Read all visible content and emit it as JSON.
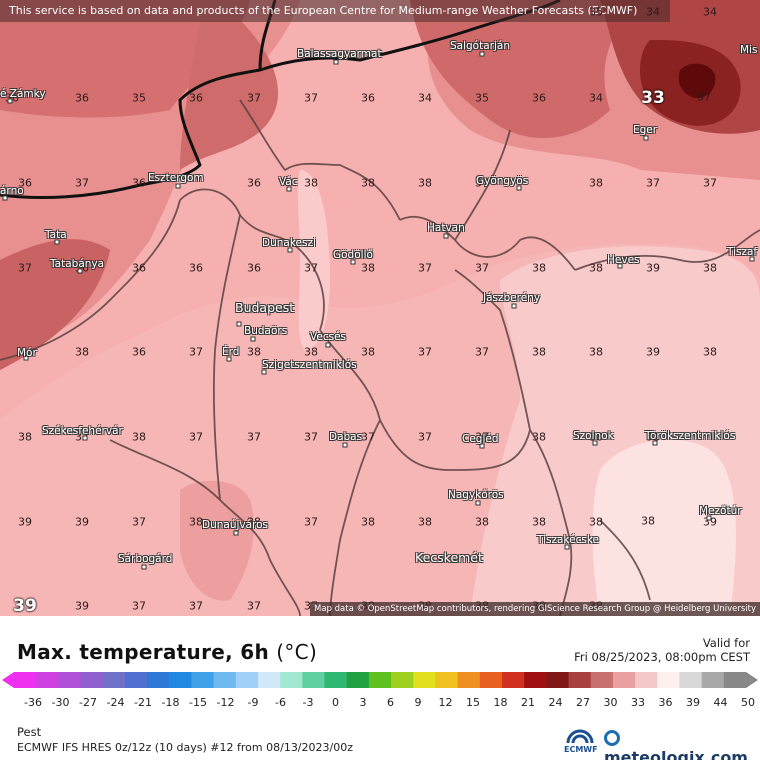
{
  "banner": "This service is based on data and products of the European Centre for Medium-range Weather Forecasts (ECMWF)",
  "attribution": "Map data © OpenStreetMap contributors, rendering GIScience Research Group @ Heidelberg University",
  "title": "Max. temperature, 6h",
  "unit": "(°C)",
  "valid_label": "Valid for",
  "valid_date": "Fri 08/25/2023, 08:00pm CEST",
  "location": "Pest",
  "model_info": "ECMWF IFS HRES 0z/12z (10 days) #12 from  08/13/2023/00z",
  "ecmwf_logo_text": "ECMWF",
  "brand": "meteologix.com",
  "colorbar": {
    "labels": [
      "-36",
      "-30",
      "-27",
      "-24",
      "-21",
      "-18",
      "-15",
      "-12",
      "-9",
      "-6",
      "-3",
      "0",
      "3",
      "6",
      "9",
      "12",
      "15",
      "18",
      "21",
      "24",
      "27",
      "30",
      "33",
      "36",
      "39",
      "44",
      "50"
    ],
    "colors": [
      "#f030f0",
      "#d040e0",
      "#b050d8",
      "#9060d0",
      "#7070c8",
      "#5070d0",
      "#3078d8",
      "#2088e0",
      "#40a0e8",
      "#70b8f0",
      "#a0d0f8",
      "#d0e8f8",
      "#a0e8d0",
      "#60d0a0",
      "#30b870",
      "#20a040",
      "#60c020",
      "#a0d020",
      "#e0e020",
      "#f0c020",
      "#f09020",
      "#e86020",
      "#d03020",
      "#a01010",
      "#801818",
      "#a84040",
      "#c87070",
      "#e8a0a0",
      "#f4c8c8",
      "#fff0f0",
      "#d8d8d8",
      "#a8a8a8",
      "#888888"
    ]
  },
  "grid_values": [
    {
      "v": "35"
    },
    {
      "v": "34"
    },
    {
      "v": "34"
    },
    {
      "v": "36"
    },
    {
      "v": "36"
    },
    {
      "v": "35"
    },
    {
      "v": "36"
    },
    {
      "v": "37"
    },
    {
      "v": "37"
    },
    {
      "v": "36"
    },
    {
      "v": "34"
    },
    {
      "v": "35"
    },
    {
      "v": "36"
    },
    {
      "v": "34"
    },
    {
      "v": "33",
      "big": true
    },
    {
      "v": "37"
    },
    {
      "v": "36"
    },
    {
      "v": "37"
    },
    {
      "v": "36"
    },
    {
      "v": "36"
    },
    {
      "v": "38"
    },
    {
      "v": "38"
    },
    {
      "v": "38"
    },
    {
      "v": "37"
    },
    {
      "v": "38"
    },
    {
      "v": "37"
    },
    {
      "v": "37"
    },
    {
      "v": "37"
    },
    {
      "v": "36"
    },
    {
      "v": "36"
    },
    {
      "v": "36"
    },
    {
      "v": "36"
    },
    {
      "v": "37"
    },
    {
      "v": "38"
    },
    {
      "v": "37"
    },
    {
      "v": "37"
    },
    {
      "v": "38"
    },
    {
      "v": "38"
    },
    {
      "v": "39"
    },
    {
      "v": "38"
    },
    {
      "v": "38"
    },
    {
      "v": "36"
    },
    {
      "v": "37"
    },
    {
      "v": "38"
    },
    {
      "v": "38"
    },
    {
      "v": "38"
    },
    {
      "v": "37"
    },
    {
      "v": "37"
    },
    {
      "v": "38"
    },
    {
      "v": "38"
    },
    {
      "v": "39"
    },
    {
      "v": "38"
    },
    {
      "v": "38"
    },
    {
      "v": "37"
    },
    {
      "v": "38"
    },
    {
      "v": "37"
    },
    {
      "v": "37"
    },
    {
      "v": "37"
    },
    {
      "v": "37"
    },
    {
      "v": "37"
    },
    {
      "v": "37"
    },
    {
      "v": "38"
    },
    {
      "v": "38"
    },
    {
      "v": "38"
    },
    {
      "v": "39"
    },
    {
      "v": "39"
    },
    {
      "v": "37"
    },
    {
      "v": "38"
    },
    {
      "v": "38"
    },
    {
      "v": "37"
    },
    {
      "v": "38"
    },
    {
      "v": "38"
    },
    {
      "v": "38"
    },
    {
      "v": "38"
    },
    {
      "v": "38"
    },
    {
      "v": "38"
    },
    {
      "v": "39"
    },
    {
      "v": "39",
      "big": true
    },
    {
      "v": "39"
    },
    {
      "v": "37"
    },
    {
      "v": "37"
    },
    {
      "v": "37"
    },
    {
      "v": "37"
    },
    {
      "v": "38"
    },
    {
      "v": "38"
    },
    {
      "v": "38"
    },
    {
      "v": "38"
    },
    {
      "v": "38"
    },
    {
      "v": "39"
    },
    {
      "v": "39"
    }
  ],
  "cities": [
    {
      "name": "Balassagyarmat"
    },
    {
      "name": "Salgótarján"
    },
    {
      "name": "Mis"
    },
    {
      "name": "é Zámky"
    },
    {
      "name": "Eger"
    },
    {
      "name": "Esztergom"
    },
    {
      "name": "Vác"
    },
    {
      "name": "Gyöngyös"
    },
    {
      "name": "árno"
    },
    {
      "name": "Tata"
    },
    {
      "name": "Dunakeszi"
    },
    {
      "name": "Gödöllő"
    },
    {
      "name": "Hatvan"
    },
    {
      "name": "Tatabánya"
    },
    {
      "name": "Heves"
    },
    {
      "name": "Tiszaf"
    },
    {
      "name": "Jászberény"
    },
    {
      "name": "Budapest",
      "large": true
    },
    {
      "name": "Budaörs"
    },
    {
      "name": "Vecsés"
    },
    {
      "name": "Mór"
    },
    {
      "name": "Érd"
    },
    {
      "name": "Szigetszentmiklós"
    },
    {
      "name": "Székesfehérvár"
    },
    {
      "name": "Dabas"
    },
    {
      "name": "Cegléd"
    },
    {
      "name": "Szolnok"
    },
    {
      "name": "Törökszentmiklós"
    },
    {
      "name": "Nagykőrös"
    },
    {
      "name": "Dunaújváros"
    },
    {
      "name": "Mezőtúr"
    },
    {
      "name": "Tiszakécske"
    },
    {
      "name": "Sárbogárd"
    },
    {
      "name": "Kecskemét",
      "large": true
    }
  ]
}
